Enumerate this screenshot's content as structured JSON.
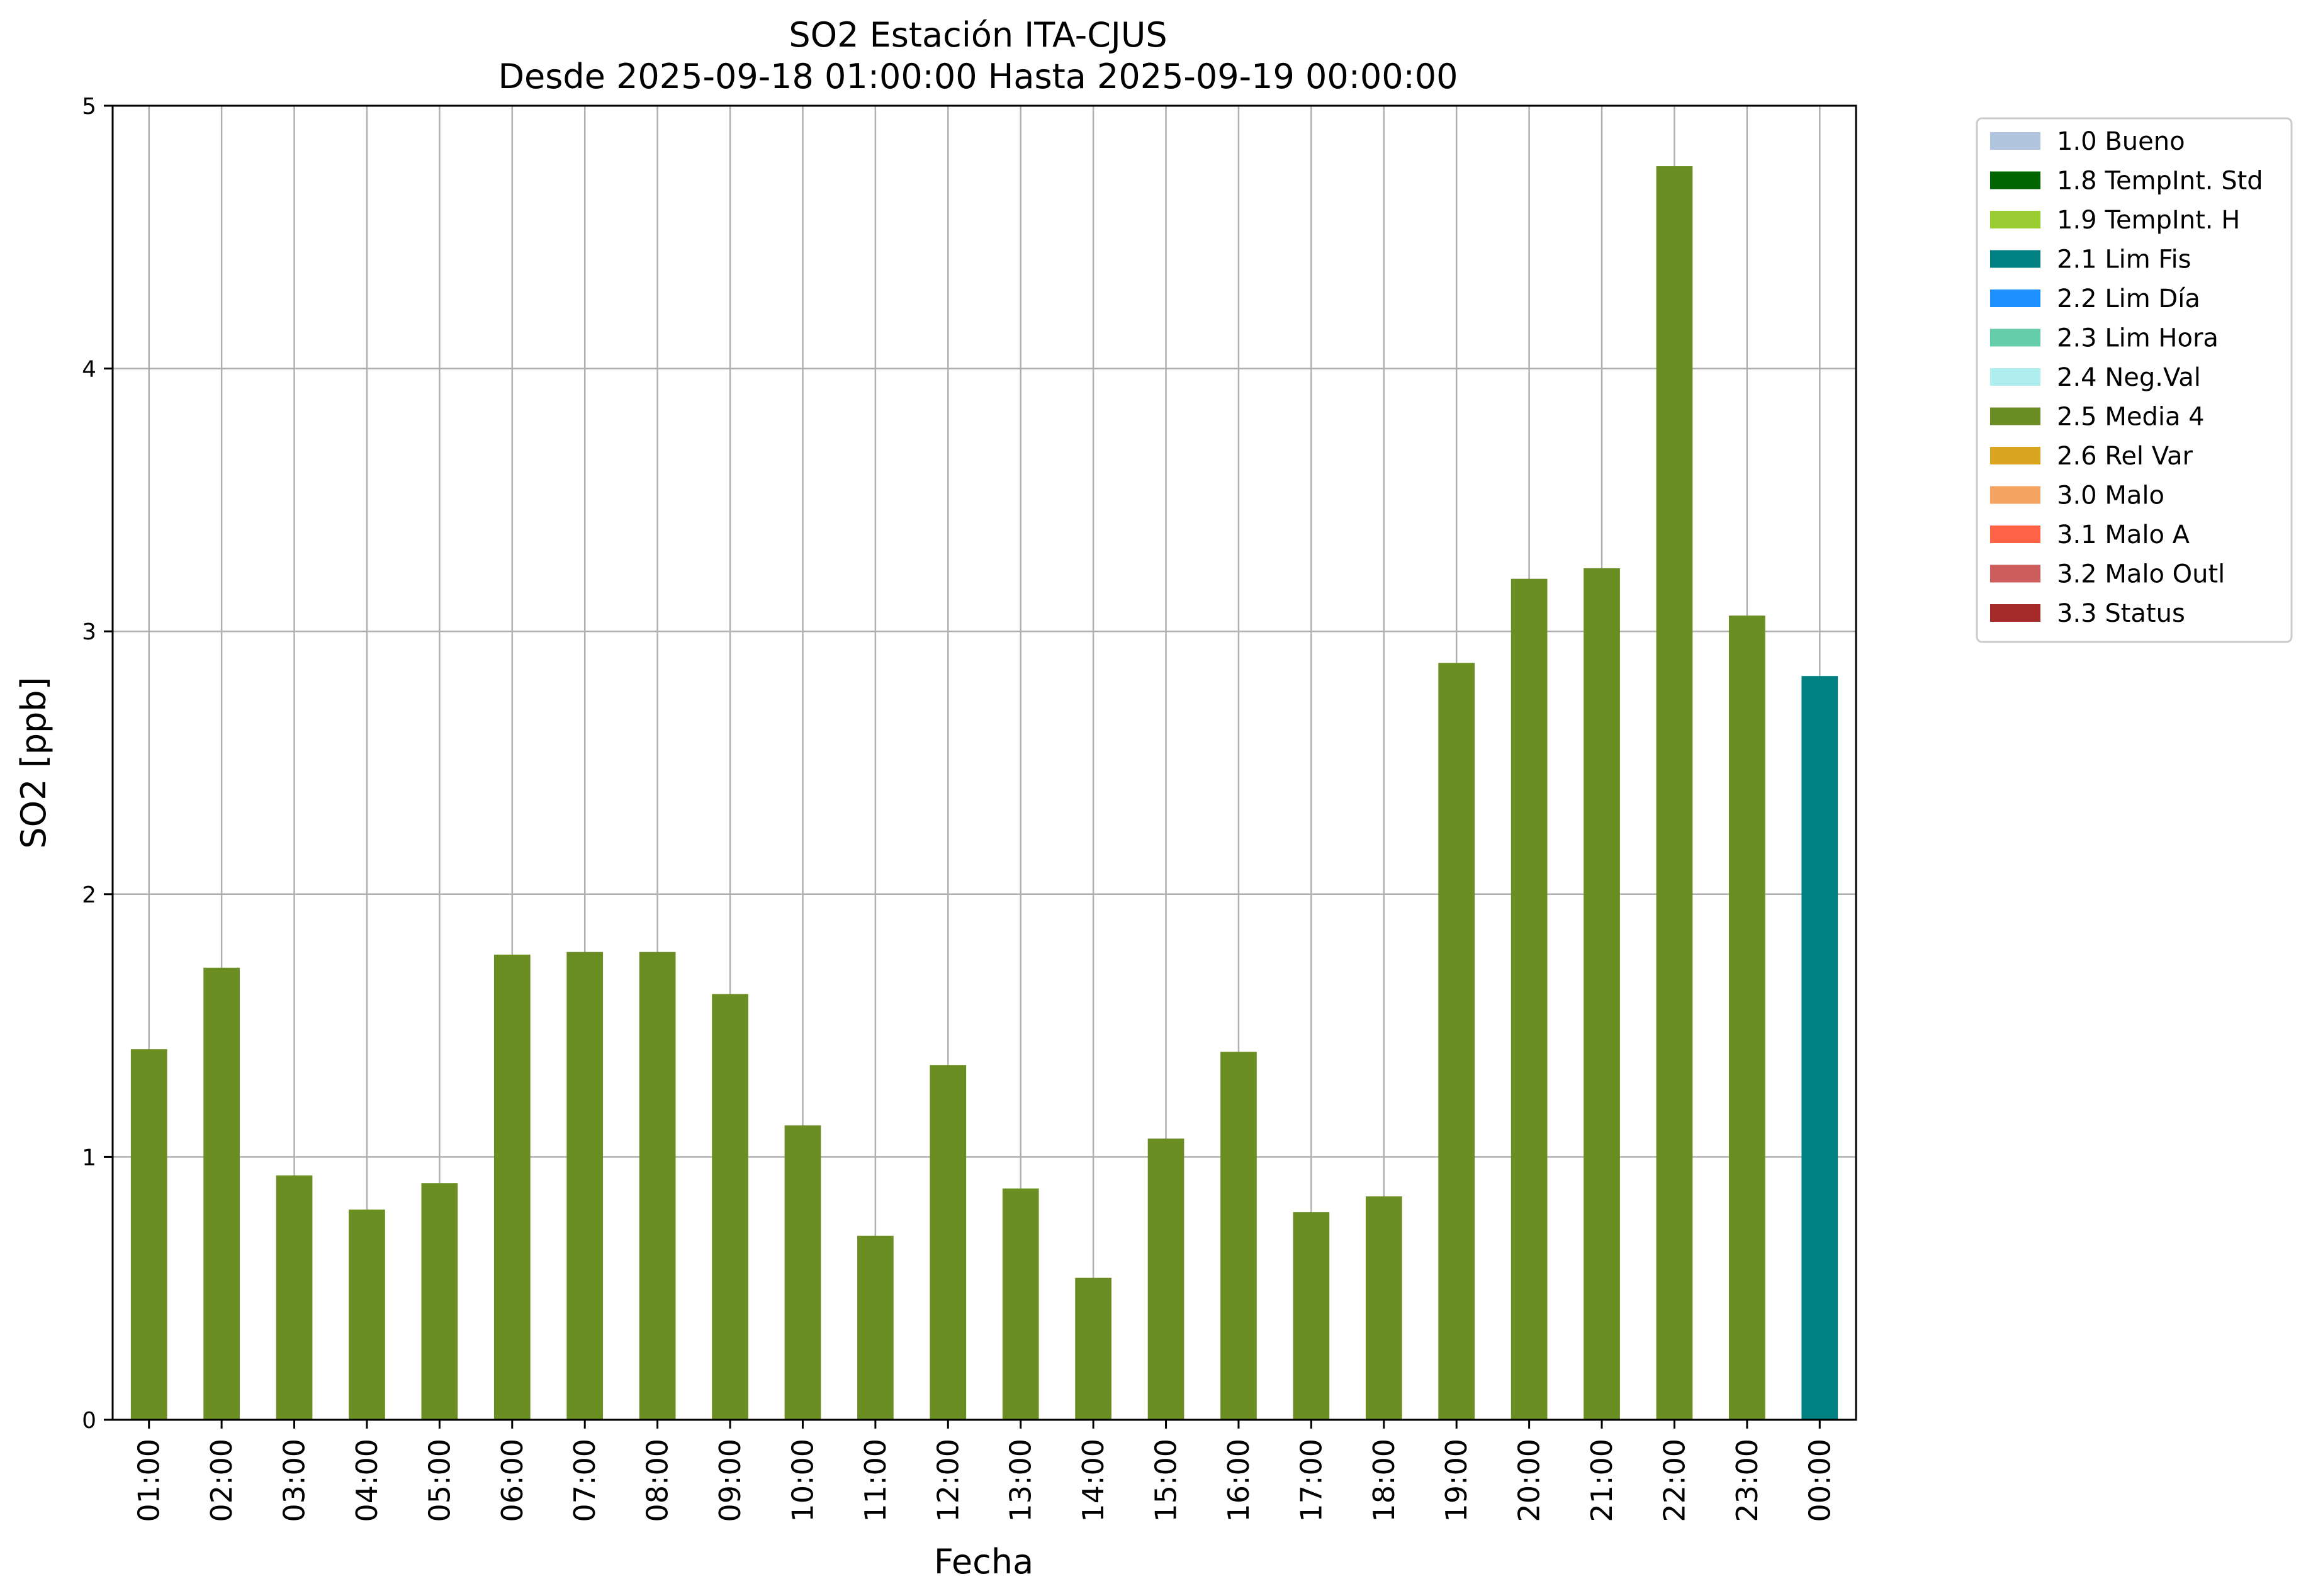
{
  "chart_data": {
    "type": "bar",
    "title": "SO2 Estación ITA-CJUS",
    "subtitle": "Desde 2025-09-18 01:00:00 Hasta 2025-09-19 00:00:00",
    "xlabel": "Fecha",
    "ylabel": "SO2 [ppb]",
    "ylim": [
      0,
      5
    ],
    "yticks": [
      "0",
      "1",
      "2",
      "3",
      "4",
      "5"
    ],
    "grid": true,
    "legend_position": "outside-top-right",
    "categories": [
      "01:00",
      "02:00",
      "03:00",
      "04:00",
      "05:00",
      "06:00",
      "07:00",
      "08:00",
      "09:00",
      "10:00",
      "11:00",
      "12:00",
      "13:00",
      "14:00",
      "15:00",
      "16:00",
      "17:00",
      "18:00",
      "19:00",
      "20:00",
      "21:00",
      "22:00",
      "23:00",
      "00:00"
    ],
    "values": [
      1.41,
      1.72,
      0.93,
      0.8,
      0.9,
      1.77,
      1.78,
      1.78,
      1.62,
      1.12,
      0.7,
      1.35,
      0.88,
      0.54,
      1.07,
      1.4,
      0.79,
      0.85,
      2.88,
      3.2,
      3.24,
      4.77,
      3.06,
      2.83
    ],
    "value_flags": [
      "2.5 Media 4",
      "2.5 Media 4",
      "2.5 Media 4",
      "2.5 Media 4",
      "2.5 Media 4",
      "2.5 Media 4",
      "2.5 Media 4",
      "2.5 Media 4",
      "2.5 Media 4",
      "2.5 Media 4",
      "2.5 Media 4",
      "2.5 Media 4",
      "2.5 Media 4",
      "2.5 Media 4",
      "2.5 Media 4",
      "2.5 Media 4",
      "2.5 Media 4",
      "2.5 Media 4",
      "2.5 Media 4",
      "2.5 Media 4",
      "2.5 Media 4",
      "2.5 Media 4",
      "2.5 Media 4",
      "2.1 Lim Fis"
    ],
    "legend": [
      {
        "label": "1.0 Bueno",
        "color": "#b0c4de"
      },
      {
        "label": "1.8 TempInt. Std",
        "color": "#006400"
      },
      {
        "label": "1.9 TempInt. H",
        "color": "#9acd32"
      },
      {
        "label": "2.1 Lim Fis",
        "color": "#008080"
      },
      {
        "label": "2.2 Lim Día",
        "color": "#1e90ff"
      },
      {
        "label": "2.3 Lim Hora",
        "color": "#66cdaa"
      },
      {
        "label": "2.4 Neg.Val",
        "color": "#afeeee"
      },
      {
        "label": "2.5 Media 4",
        "color": "#6b8e23"
      },
      {
        "label": "2.6 Rel Var",
        "color": "#daa520"
      },
      {
        "label": "3.0 Malo",
        "color": "#f4a460"
      },
      {
        "label": "3.1 Malo A",
        "color": "#ff6347"
      },
      {
        "label": "3.2 Malo Outl",
        "color": "#cd5c5c"
      },
      {
        "label": "3.3 Status",
        "color": "#a52a2a"
      }
    ]
  }
}
